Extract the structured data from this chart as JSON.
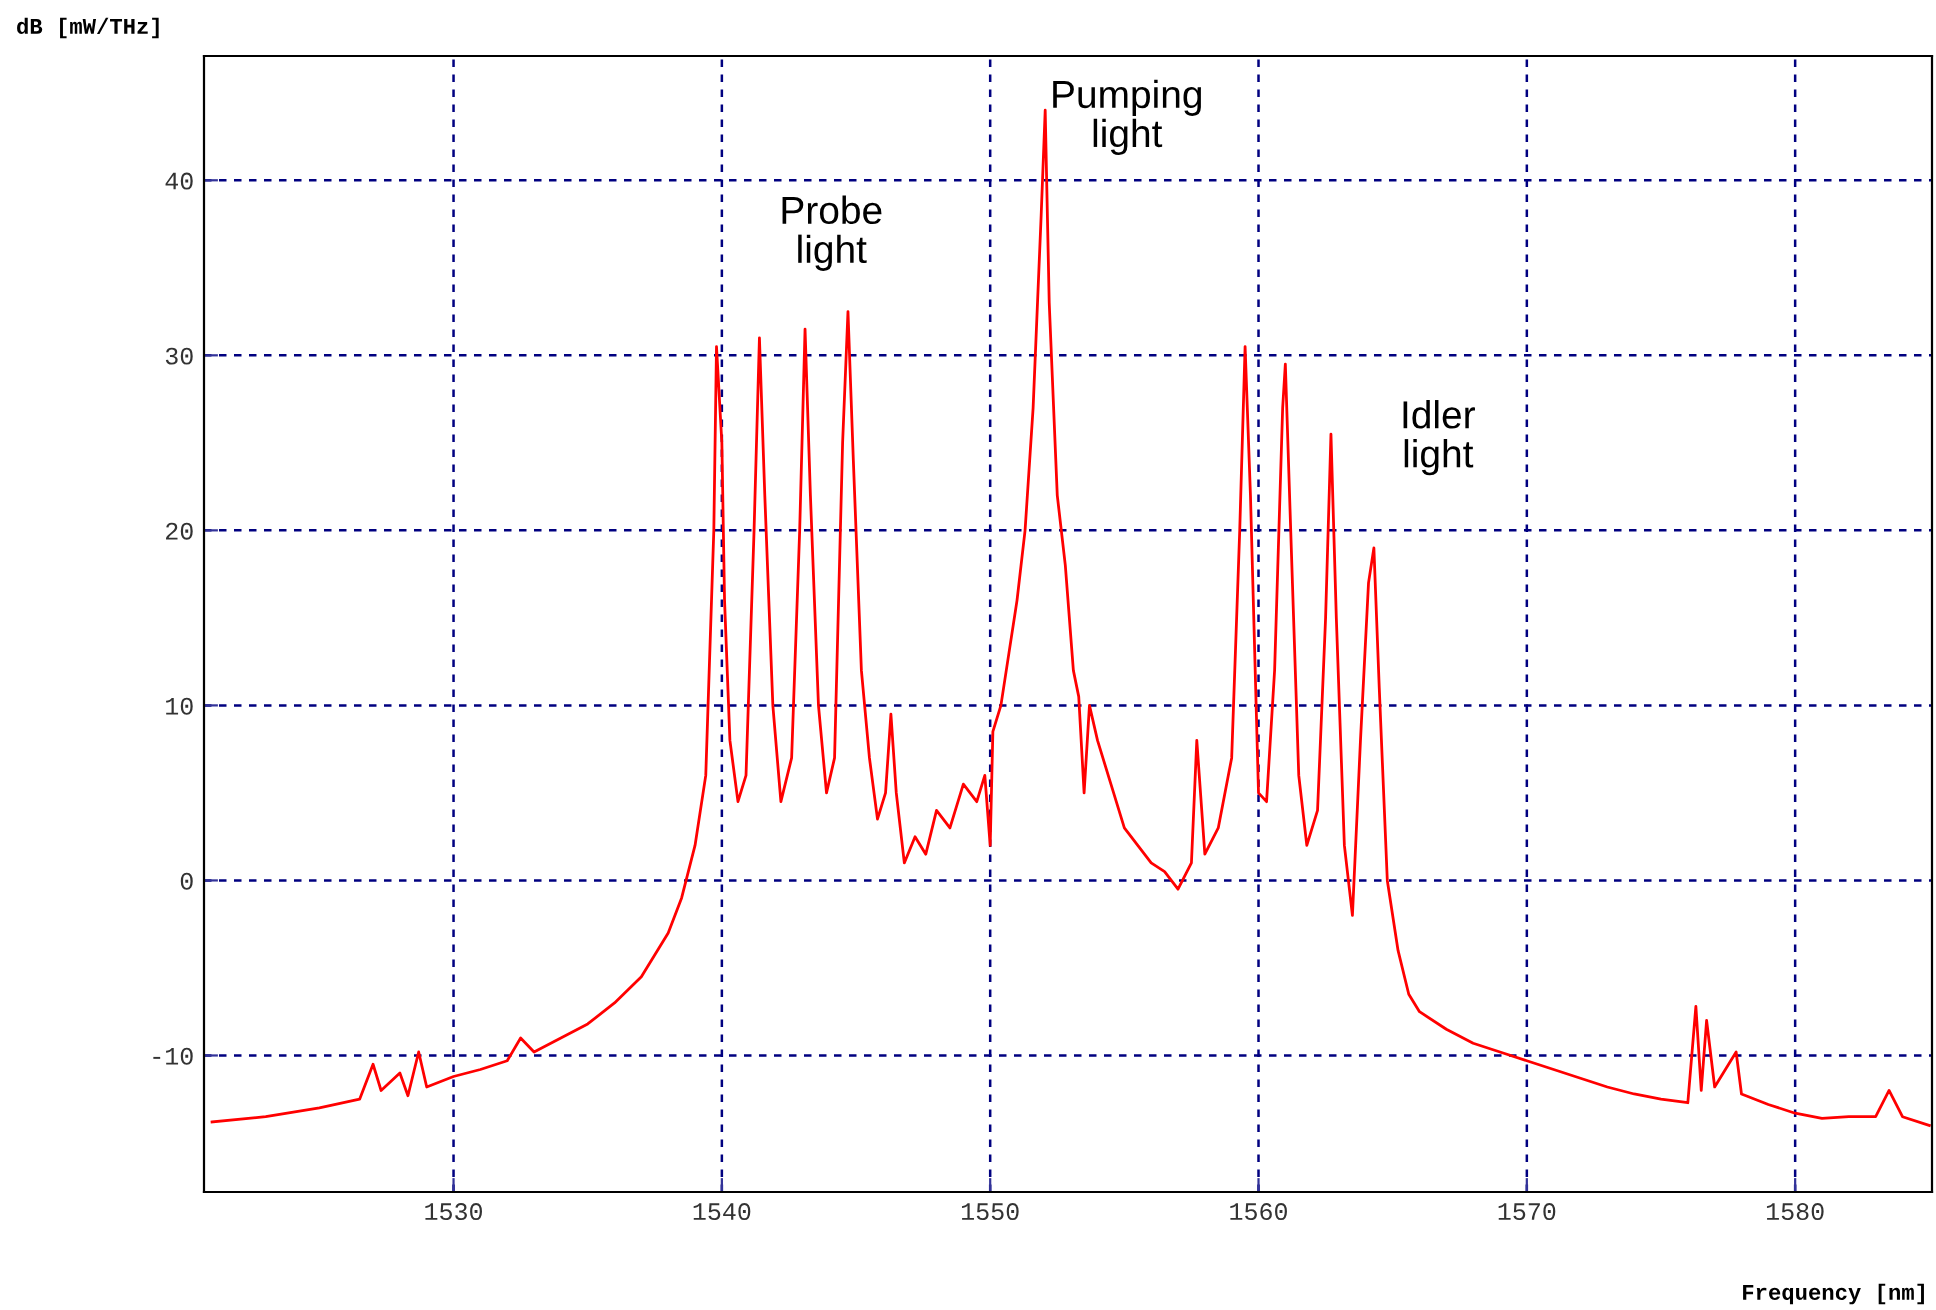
{
  "chart_data": {
    "type": "line",
    "ylabel": "dB [mW/THz]",
    "xlabel": "Frequency [nm]",
    "xlim": [
      1520.7,
      1585.1
    ],
    "ylim": [
      -17.8,
      47.1
    ],
    "xticks": [
      1530,
      1540,
      1550,
      1560,
      1570,
      1580
    ],
    "yticks": [
      -10,
      0,
      10,
      20,
      30,
      40
    ],
    "grid": true,
    "marker": "none",
    "line_style": "solid",
    "series": [
      {
        "color": "#ff0000",
        "x": [
          1521,
          1523,
          1525,
          1526.5,
          1527,
          1527.3,
          1528,
          1528.3,
          1528.7,
          1529,
          1530,
          1531,
          1532,
          1532.5,
          1533,
          1534,
          1535,
          1536,
          1537,
          1538,
          1538.5,
          1539,
          1539.4,
          1539.7,
          1539.8,
          1540,
          1540.1,
          1540.3,
          1540.6,
          1540.9,
          1541.2,
          1541.4,
          1541.6,
          1541.9,
          1542.2,
          1542.6,
          1542.9,
          1543.1,
          1543.3,
          1543.6,
          1543.9,
          1544.2,
          1544.5,
          1544.7,
          1544.9,
          1545.2,
          1545.5,
          1545.8,
          1546.1,
          1546.3,
          1546.5,
          1546.8,
          1547.2,
          1547.6,
          1548,
          1548.5,
          1549,
          1549.5,
          1549.8,
          1550,
          1550.1,
          1550.4,
          1550.7,
          1551,
          1551.3,
          1551.6,
          1551.9,
          1552.05,
          1552.2,
          1552.5,
          1552.8,
          1553.1,
          1553.3,
          1553.5,
          1553.7,
          1554,
          1554.5,
          1555,
          1555.5,
          1556,
          1556.5,
          1557,
          1557.5,
          1557.7,
          1558,
          1558.5,
          1559,
          1559.3,
          1559.5,
          1559.7,
          1560,
          1560.3,
          1560.6,
          1560.9,
          1561.0,
          1561.2,
          1561.5,
          1561.8,
          1562.2,
          1562.5,
          1562.7,
          1562.9,
          1563.2,
          1563.5,
          1563.8,
          1564.1,
          1564.3,
          1564.5,
          1564.8,
          1565.2,
          1565.6,
          1566,
          1567,
          1568,
          1569,
          1570,
          1571,
          1572,
          1573,
          1574,
          1575,
          1576,
          1576.3,
          1576.5,
          1576.7,
          1577,
          1577.8,
          1578,
          1579,
          1580,
          1581,
          1582,
          1583,
          1583.5,
          1584,
          1585
        ],
        "values": [
          -13.8,
          -13.5,
          -13.0,
          -12.5,
          -10.5,
          -12,
          -11,
          -12.3,
          -9.8,
          -11.8,
          -11.2,
          -10.8,
          -10.3,
          -9,
          -9.8,
          -9.0,
          -8.2,
          -7.0,
          -5.5,
          -3,
          -1,
          2,
          6,
          20,
          30.5,
          25,
          16,
          8,
          4.5,
          6,
          20,
          31,
          22,
          10,
          4.5,
          7,
          20,
          31.5,
          22,
          10,
          5,
          7,
          25,
          32.5,
          24,
          12,
          7,
          3.5,
          5,
          9.5,
          5,
          1,
          2.5,
          1.5,
          4,
          3,
          5.5,
          4.5,
          6,
          2,
          8.5,
          10,
          13,
          16,
          20,
          27,
          38,
          44,
          33,
          22,
          18,
          12,
          10.5,
          5,
          10,
          8,
          5.5,
          3,
          2,
          1,
          0.5,
          -0.5,
          1,
          8,
          1.5,
          3,
          7,
          20,
          30.5,
          22,
          5,
          4.5,
          12,
          27,
          29.5,
          20,
          6,
          2,
          4,
          15,
          25.5,
          15,
          2,
          -2,
          8,
          17,
          19,
          11,
          0,
          -4,
          -6.5,
          -7.5,
          -8.5,
          -9.3,
          -9.8,
          -10.3,
          -10.8,
          -11.3,
          -11.8,
          -12.2,
          -12.5,
          -12.7,
          -7.2,
          -12,
          -8,
          -11.8,
          -9.8,
          -12.2,
          -12.8,
          -13.3,
          -13.6,
          -13.5,
          -13.5,
          -12,
          -13.5,
          -14
        ]
      }
    ],
    "annotations": [
      "Probe\nlight",
      "Pumping\nlight",
      "Idler\nlight"
    ]
  }
}
